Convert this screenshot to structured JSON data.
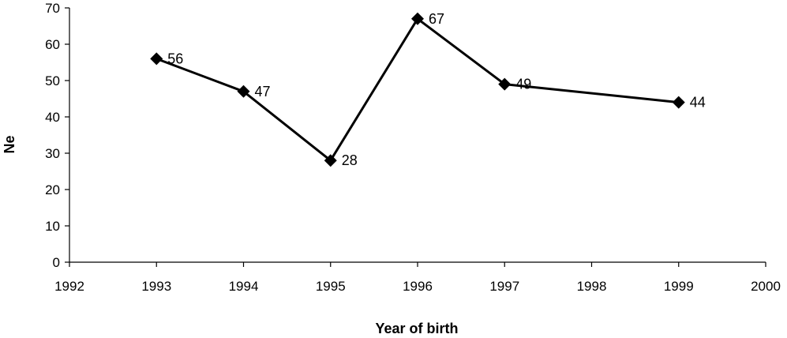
{
  "chart_data": {
    "type": "line",
    "title": "",
    "xlabel": "Year of birth",
    "ylabel": "Ne",
    "xlim": [
      1992,
      2000
    ],
    "ylim": [
      0,
      70
    ],
    "xticks": [
      1992,
      1993,
      1994,
      1995,
      1996,
      1997,
      1998,
      1999,
      2000
    ],
    "yticks": [
      0,
      10,
      20,
      30,
      40,
      50,
      60,
      70
    ],
    "grid": false,
    "legend": "none",
    "marker": "diamond",
    "color": "#000000",
    "series": [
      {
        "x": [
          1993,
          1994,
          1995,
          1996,
          1997,
          1999
        ],
        "y": [
          56,
          47,
          28,
          67,
          49,
          44
        ],
        "labels": [
          "56",
          "47",
          "28",
          "67",
          "49",
          "44"
        ]
      }
    ]
  }
}
